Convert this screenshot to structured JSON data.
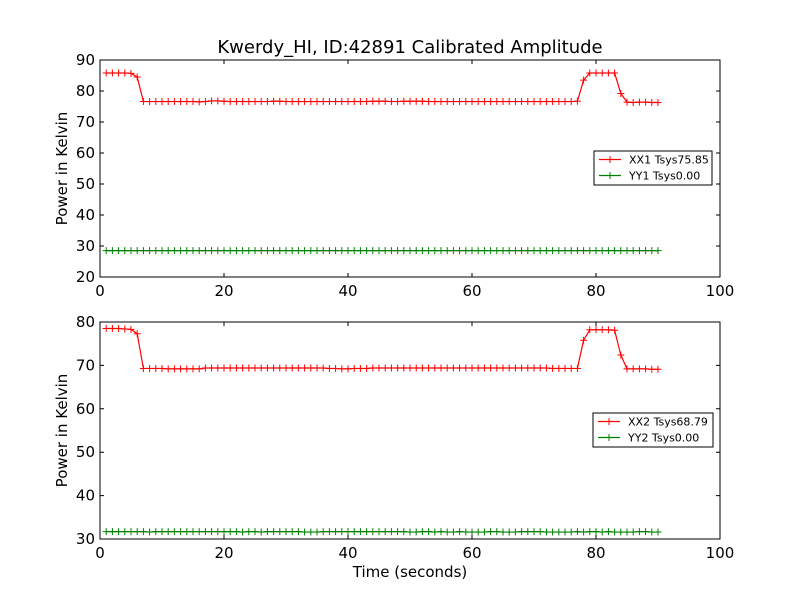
{
  "figure": {
    "title": "Kwerdy_HI, ID:42891 Calibrated Amplitude"
  },
  "chart_data": [
    {
      "type": "line",
      "xlabel": "",
      "ylabel": "Power in Kelvin",
      "xlim": [
        0,
        100
      ],
      "ylim": [
        20,
        90
      ],
      "xticks": [
        0,
        20,
        40,
        60,
        80,
        100
      ],
      "yticks": [
        20,
        30,
        40,
        50,
        60,
        70,
        80,
        90
      ],
      "legend_position": "center-right",
      "x": [
        1,
        2,
        3,
        4,
        5,
        6,
        7,
        8,
        9,
        10,
        11,
        12,
        13,
        14,
        15,
        16,
        17,
        18,
        19,
        20,
        21,
        22,
        23,
        24,
        25,
        26,
        27,
        28,
        29,
        30,
        31,
        32,
        33,
        34,
        35,
        36,
        37,
        38,
        39,
        40,
        41,
        42,
        43,
        44,
        45,
        46,
        47,
        48,
        49,
        50,
        51,
        52,
        53,
        54,
        55,
        56,
        57,
        58,
        59,
        60,
        61,
        62,
        63,
        64,
        65,
        66,
        67,
        68,
        69,
        70,
        71,
        72,
        73,
        74,
        75,
        76,
        77,
        78,
        79,
        80,
        81,
        82,
        83,
        84,
        85,
        86,
        87,
        88,
        89,
        90
      ],
      "series": [
        {
          "name": "XX1 Tsys75.85",
          "color": "#ff0000",
          "values": [
            85.8,
            85.8,
            85.8,
            85.8,
            85.7,
            84.5,
            76.6,
            76.6,
            76.6,
            76.6,
            76.6,
            76.6,
            76.6,
            76.6,
            76.6,
            76.5,
            76.6,
            76.8,
            76.8,
            76.7,
            76.6,
            76.6,
            76.6,
            76.6,
            76.6,
            76.6,
            76.6,
            76.7,
            76.7,
            76.6,
            76.6,
            76.6,
            76.6,
            76.6,
            76.6,
            76.6,
            76.6,
            76.6,
            76.6,
            76.6,
            76.6,
            76.6,
            76.6,
            76.7,
            76.7,
            76.7,
            76.6,
            76.6,
            76.7,
            76.7,
            76.7,
            76.7,
            76.6,
            76.6,
            76.6,
            76.6,
            76.6,
            76.6,
            76.6,
            76.6,
            76.6,
            76.6,
            76.6,
            76.6,
            76.6,
            76.6,
            76.6,
            76.6,
            76.6,
            76.6,
            76.6,
            76.6,
            76.6,
            76.6,
            76.6,
            76.6,
            76.7,
            83.5,
            85.8,
            85.8,
            85.8,
            85.8,
            85.8,
            79.2,
            76.4,
            76.3,
            76.4,
            76.4,
            76.3,
            76.3
          ]
        },
        {
          "name": "YY1 Tsys0.00",
          "color": "#008000",
          "values": [
            28.5,
            28.5,
            28.5,
            28.5,
            28.5,
            28.5,
            28.5,
            28.5,
            28.5,
            28.5,
            28.5,
            28.5,
            28.5,
            28.5,
            28.5,
            28.5,
            28.5,
            28.5,
            28.5,
            28.5,
            28.5,
            28.5,
            28.5,
            28.5,
            28.5,
            28.5,
            28.5,
            28.5,
            28.5,
            28.5,
            28.5,
            28.5,
            28.5,
            28.5,
            28.5,
            28.5,
            28.5,
            28.5,
            28.5,
            28.5,
            28.5,
            28.5,
            28.5,
            28.5,
            28.5,
            28.5,
            28.5,
            28.5,
            28.5,
            28.5,
            28.5,
            28.5,
            28.5,
            28.5,
            28.5,
            28.5,
            28.5,
            28.5,
            28.5,
            28.5,
            28.5,
            28.5,
            28.5,
            28.5,
            28.5,
            28.5,
            28.5,
            28.5,
            28.5,
            28.5,
            28.5,
            28.5,
            28.5,
            28.5,
            28.5,
            28.5,
            28.5,
            28.5,
            28.5,
            28.5,
            28.5,
            28.5,
            28.5,
            28.5,
            28.5,
            28.5,
            28.5,
            28.5,
            28.5,
            28.5
          ]
        }
      ]
    },
    {
      "type": "line",
      "xlabel": "Time (seconds)",
      "ylabel": "Power in Kelvin",
      "xlim": [
        0,
        100
      ],
      "ylim": [
        30,
        80
      ],
      "xticks": [
        0,
        20,
        40,
        60,
        80,
        100
      ],
      "yticks": [
        30,
        40,
        50,
        60,
        70,
        80
      ],
      "legend_position": "center-right",
      "x": [
        1,
        2,
        3,
        4,
        5,
        6,
        7,
        8,
        9,
        10,
        11,
        12,
        13,
        14,
        15,
        16,
        17,
        18,
        19,
        20,
        21,
        22,
        23,
        24,
        25,
        26,
        27,
        28,
        29,
        30,
        31,
        32,
        33,
        34,
        35,
        36,
        37,
        38,
        39,
        40,
        41,
        42,
        43,
        44,
        45,
        46,
        47,
        48,
        49,
        50,
        51,
        52,
        53,
        54,
        55,
        56,
        57,
        58,
        59,
        60,
        61,
        62,
        63,
        64,
        65,
        66,
        67,
        68,
        69,
        70,
        71,
        72,
        73,
        74,
        75,
        76,
        77,
        78,
        79,
        80,
        81,
        82,
        83,
        84,
        85,
        86,
        87,
        88,
        89,
        90
      ],
      "series": [
        {
          "name": "XX2 Tsys68.79",
          "color": "#ff0000",
          "values": [
            78.5,
            78.5,
            78.5,
            78.4,
            78.3,
            77.3,
            69.3,
            69.3,
            69.3,
            69.3,
            69.2,
            69.2,
            69.2,
            69.2,
            69.2,
            69.2,
            69.4,
            69.4,
            69.4,
            69.4,
            69.4,
            69.4,
            69.4,
            69.4,
            69.4,
            69.4,
            69.4,
            69.4,
            69.4,
            69.4,
            69.4,
            69.4,
            69.4,
            69.4,
            69.4,
            69.4,
            69.3,
            69.3,
            69.2,
            69.2,
            69.3,
            69.3,
            69.3,
            69.4,
            69.4,
            69.4,
            69.4,
            69.4,
            69.4,
            69.4,
            69.4,
            69.4,
            69.4,
            69.4,
            69.4,
            69.4,
            69.4,
            69.4,
            69.4,
            69.4,
            69.4,
            69.4,
            69.4,
            69.4,
            69.4,
            69.4,
            69.4,
            69.4,
            69.4,
            69.4,
            69.4,
            69.4,
            69.3,
            69.3,
            69.3,
            69.3,
            69.3,
            75.8,
            78.2,
            78.2,
            78.2,
            78.2,
            78.1,
            72.4,
            69.2,
            69.2,
            69.2,
            69.2,
            69.1,
            69.1
          ]
        },
        {
          "name": "YY2 Tsys0.00",
          "color": "#008000",
          "values": [
            31.7,
            31.7,
            31.7,
            31.7,
            31.7,
            31.7,
            31.7,
            31.6,
            31.7,
            31.7,
            31.7,
            31.7,
            31.7,
            31.7,
            31.7,
            31.7,
            31.7,
            31.7,
            31.7,
            31.7,
            31.7,
            31.7,
            31.6,
            31.7,
            31.7,
            31.6,
            31.7,
            31.7,
            31.7,
            31.7,
            31.7,
            31.7,
            31.6,
            31.6,
            31.6,
            31.7,
            31.7,
            31.7,
            31.7,
            31.7,
            31.7,
            31.7,
            31.7,
            31.7,
            31.7,
            31.7,
            31.7,
            31.7,
            31.7,
            31.6,
            31.6,
            31.7,
            31.7,
            31.6,
            31.7,
            31.6,
            31.6,
            31.7,
            31.6,
            31.6,
            31.6,
            31.6,
            31.7,
            31.7,
            31.6,
            31.6,
            31.6,
            31.7,
            31.7,
            31.7,
            31.7,
            31.6,
            31.6,
            31.6,
            31.6,
            31.6,
            31.7,
            31.6,
            31.7,
            31.7,
            31.6,
            31.7,
            31.6,
            31.6,
            31.6,
            31.6,
            31.7,
            31.7,
            31.6,
            31.6
          ]
        }
      ]
    }
  ]
}
